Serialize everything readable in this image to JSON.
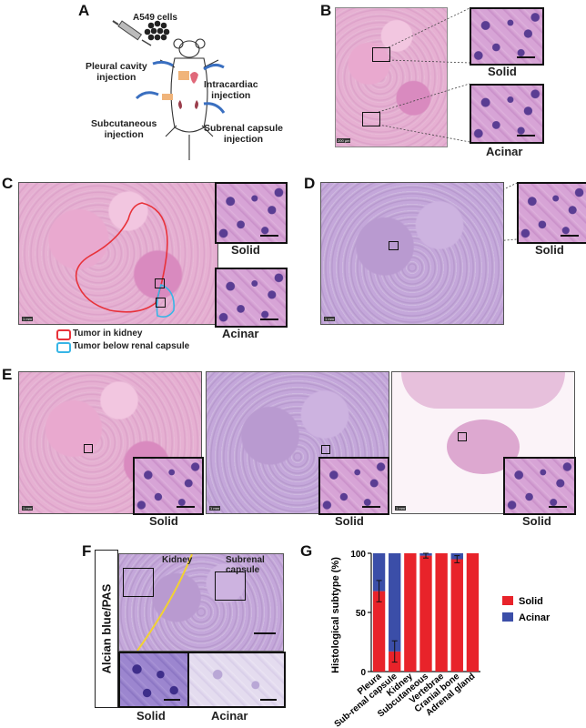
{
  "panels": {
    "A": "A",
    "B": "B",
    "C": "C",
    "D": "D",
    "E": "E",
    "F": "F",
    "G": "G"
  },
  "panelA": {
    "cells_label": "A549 cells",
    "pleural": "Pleural cavity\ninjection",
    "intracardiac": "Intracardiac\ninjection",
    "subcutaneous": "Subcutaneous\ninjection",
    "subrenal": "Subrenal capsule\ninjection"
  },
  "panelB": {
    "inset1": "Solid",
    "inset2": "Acinar",
    "scale": "200 µm"
  },
  "panelC": {
    "inset1": "Solid",
    "inset2": "Acinar",
    "scale": "1 mm",
    "legend_red": "Tumor in kidney",
    "legend_blue": "Tumor below renal capsule",
    "red_color": "#e8323a",
    "blue_color": "#37b5e6"
  },
  "panelD": {
    "inset1": "Solid",
    "scale": "1 mm"
  },
  "panelE": {
    "inset1": "Solid",
    "inset2": "Solid",
    "inset3": "Solid",
    "scale": "1 mm"
  },
  "panelF": {
    "side_label": "Alcian blue/PAS",
    "kidney": "Kidney",
    "subrenal": "Subrenal\ncapsule",
    "inset1": "Solid",
    "inset2": "Acinar"
  },
  "chart_data": {
    "type": "bar",
    "stacked": true,
    "ylabel": "Histological subtype (%)",
    "yticks": [
      "0",
      "50",
      "100"
    ],
    "ylim": [
      0,
      100
    ],
    "categories": [
      "Pleura",
      "Sub-renal capsule",
      "Kidney",
      "Subcutaneous",
      "Vertebrae",
      "Cranial bone",
      "Adrenal gland"
    ],
    "series": [
      {
        "name": "Solid",
        "color": "#e8232a",
        "values": [
          68,
          17,
          100,
          98,
          100,
          95,
          100
        ],
        "errors": [
          9,
          9,
          0,
          2,
          0,
          3,
          0
        ]
      },
      {
        "name": "Acinar",
        "color": "#3b4ea8",
        "values": [
          32,
          83,
          0,
          2,
          0,
          5,
          0
        ]
      }
    ],
    "legend_position": "right"
  }
}
